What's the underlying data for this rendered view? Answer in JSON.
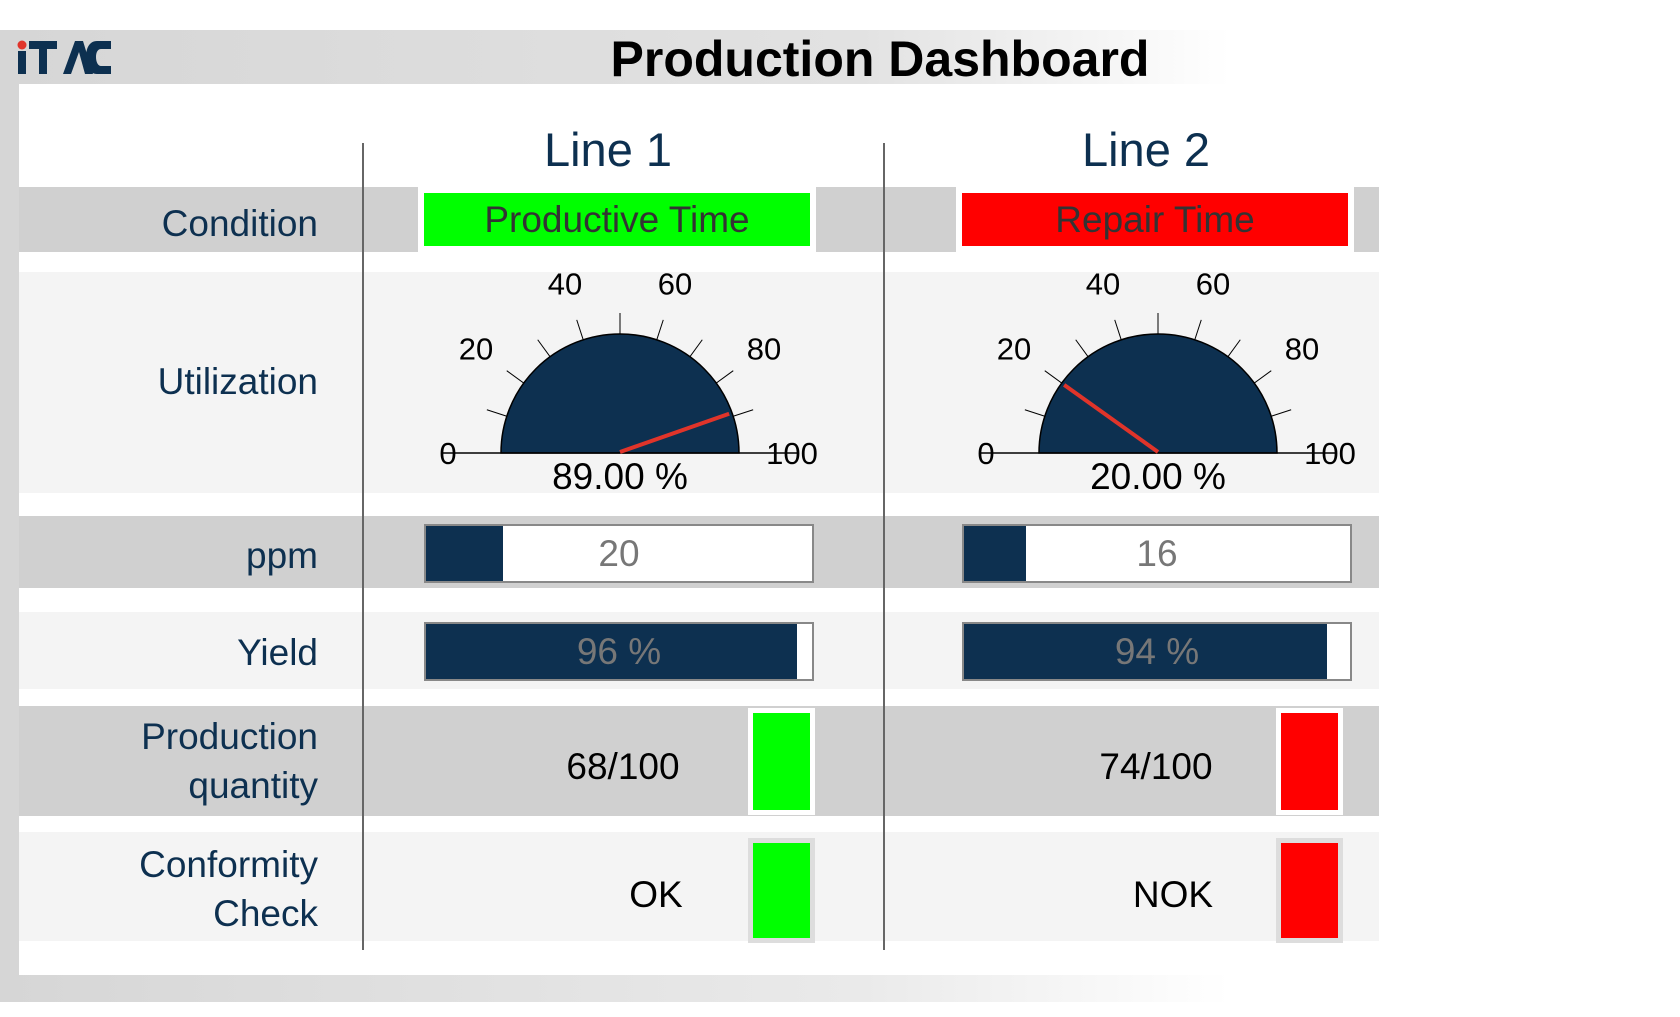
{
  "header": {
    "logo_text": "iTAC",
    "title": "Production Dashboard"
  },
  "colors": {
    "navy": "#0d3050",
    "green": "#00ff00",
    "red": "#ff0000",
    "needle": "#e0342a"
  },
  "rows": {
    "condition": "Condition",
    "utilization": "Utilization",
    "ppm": "ppm",
    "yield": "Yield",
    "production": [
      "Production",
      "quantity"
    ],
    "conformity": [
      "Conformity",
      "Check"
    ]
  },
  "gauge_ticks": [
    "0",
    "20",
    "40",
    "60",
    "80",
    "100"
  ],
  "lines": [
    {
      "name": "Line 1",
      "condition": "Productive Time",
      "condition_color": "#00ff00",
      "utilization": 89,
      "utilization_label": "89.00 %",
      "ppm": 20,
      "ppm_label": "20",
      "yield": 96,
      "yield_label": "96 %",
      "production": "68/100",
      "production_color": "#00ff00",
      "conformity": "OK",
      "conformity_color": "#00ff00"
    },
    {
      "name": "Line 2",
      "condition": "Repair Time",
      "condition_color": "#ff0000",
      "utilization": 20,
      "utilization_label": "20.00 %",
      "ppm": 16,
      "ppm_label": "16",
      "yield": 94,
      "yield_label": "94 %",
      "production": "74/100",
      "production_color": "#ff0000",
      "conformity": "NOK",
      "conformity_color": "#ff0000"
    }
  ]
}
